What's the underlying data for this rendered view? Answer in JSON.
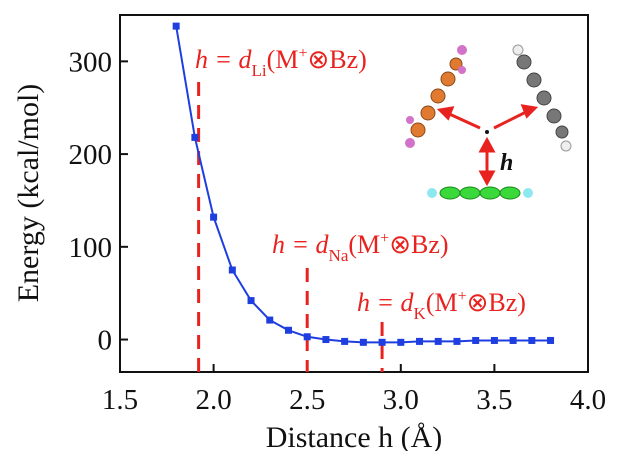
{
  "chart_data": {
    "type": "line",
    "x_label": "Distance h (Å)",
    "y_label": "Energy (kcal/mol)",
    "x": [
      1.8,
      1.9,
      2.0,
      2.1,
      2.2,
      2.3,
      2.4,
      2.5,
      2.6,
      2.7,
      2.8,
      2.9,
      3.0,
      3.1,
      3.2,
      3.3,
      3.4,
      3.5,
      3.6,
      3.7,
      3.8
    ],
    "series": [
      {
        "color": "#1e3ee0",
        "values": [
          338,
          218,
          132,
          75,
          42,
          21,
          10,
          3,
          0,
          -2,
          -3,
          -3,
          -3,
          -2,
          -2,
          -2,
          -1,
          -1,
          -1,
          -1,
          -1
        ]
      }
    ],
    "xlim": [
      1.5,
      4.0
    ],
    "ylim": [
      -35,
      350
    ],
    "xticks": [
      1.5,
      {
        "value": 2.0,
        "label": "2.0"
      },
      2.5,
      {
        "value": 3.0,
        "label": "3.0"
      },
      3.5,
      {
        "value": 4.0,
        "label": "4.0"
      }
    ],
    "yticks": [
      0,
      100,
      200,
      300
    ],
    "annotations": [
      {
        "x": 1.92,
        "lead": "h = d",
        "sub": "Li",
        "mid": "(M",
        "sup": "+",
        "tail": "⊗Bz)"
      },
      {
        "x": 2.5,
        "lead": "h = d",
        "sub": "Na",
        "mid": "(M",
        "sup": "+",
        "tail": "⊗Bz)"
      },
      {
        "x": 2.9,
        "lead": "h = d",
        "sub": "K",
        "mid": "(M",
        "sup": "+",
        "tail": "⊗Bz)"
      }
    ],
    "annotation_color": "#e8231f",
    "inset_label": "h"
  }
}
